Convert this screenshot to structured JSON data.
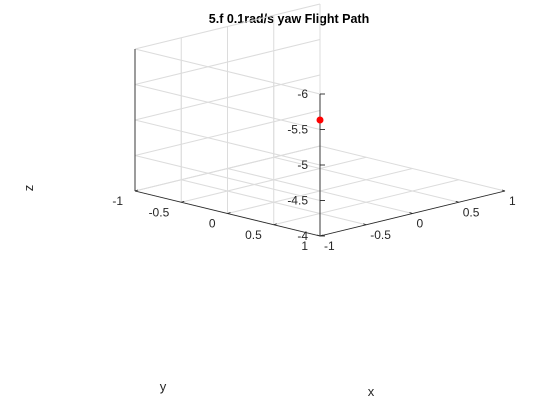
{
  "chart_data": {
    "type": "scatter",
    "title": "5.f 0.1rad/s yaw Flight Path",
    "xlabel": "x",
    "ylabel": "y",
    "zlabel": "z",
    "xlim": [
      -1,
      1
    ],
    "ylim": [
      -1,
      1
    ],
    "zlim": [
      -6,
      -4
    ],
    "z_reversed": true,
    "grid": true,
    "x_ticks": [
      -1,
      -0.5,
      0,
      0.5,
      1
    ],
    "y_ticks": [
      -1,
      -0.5,
      0,
      0.5,
      1
    ],
    "z_ticks": [
      -6,
      -5.5,
      -5,
      -4.5,
      -4
    ],
    "x_tick_labels": [
      "-1",
      "-0.5",
      "0",
      "0.5",
      "1"
    ],
    "y_tick_labels": [
      "-1",
      "-0.5",
      "0",
      "0.5",
      "1"
    ],
    "z_tick_labels": [
      "-6",
      "-5.5",
      "-5",
      "-4.5",
      "-4"
    ],
    "series": [
      {
        "x": [
          0
        ],
        "y": [
          0
        ],
        "z": [
          -5
        ],
        "color": "#ff0000",
        "marker": "o"
      }
    ]
  }
}
